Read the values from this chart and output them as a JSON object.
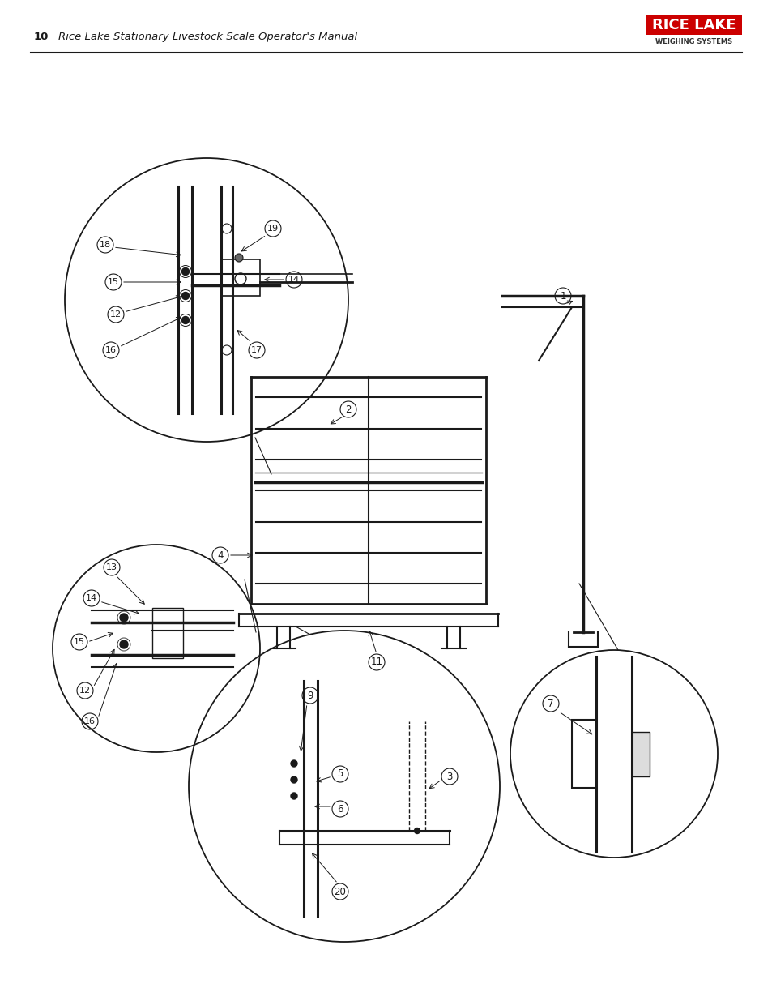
{
  "page_number": "10",
  "footer_text": "Rice Lake Stationary Livestock Scale Operator's Manual",
  "background_color": "#ffffff",
  "line_color": "#1a1a1a",
  "text_color": "#1a1a1a",
  "logo_red": "#cc0000",
  "logo_text": "RICE LAKE",
  "logo_sub": "WEIGHING SYSTEMS",
  "fig_width": 9.54,
  "fig_height": 12.35,
  "circle_linewidth": 1.2
}
